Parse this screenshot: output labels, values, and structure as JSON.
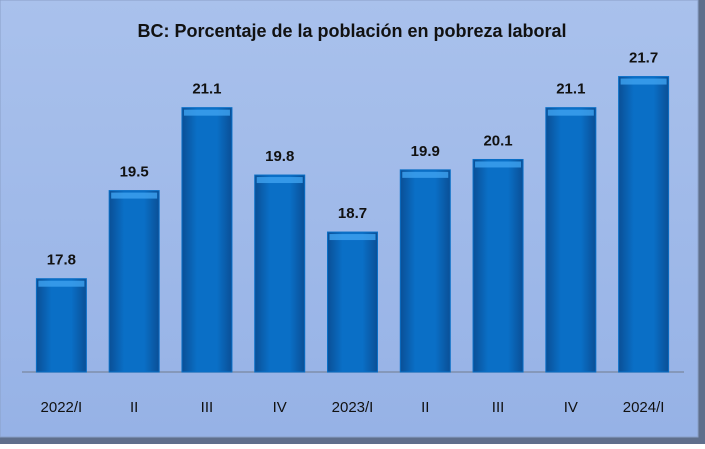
{
  "chart_data": {
    "type": "bar",
    "title": "BC: Porcentaje de la población en pobreza laboral",
    "categories": [
      "2022/I",
      "II",
      "III",
      "IV",
      "2023/I",
      "II",
      "III",
      "IV",
      "2024/I"
    ],
    "values": [
      17.8,
      19.5,
      21.1,
      19.8,
      18.7,
      19.9,
      20.1,
      21.1,
      21.7
    ],
    "color": "#0a6fc6",
    "ylim": [
      16,
      22
    ]
  }
}
